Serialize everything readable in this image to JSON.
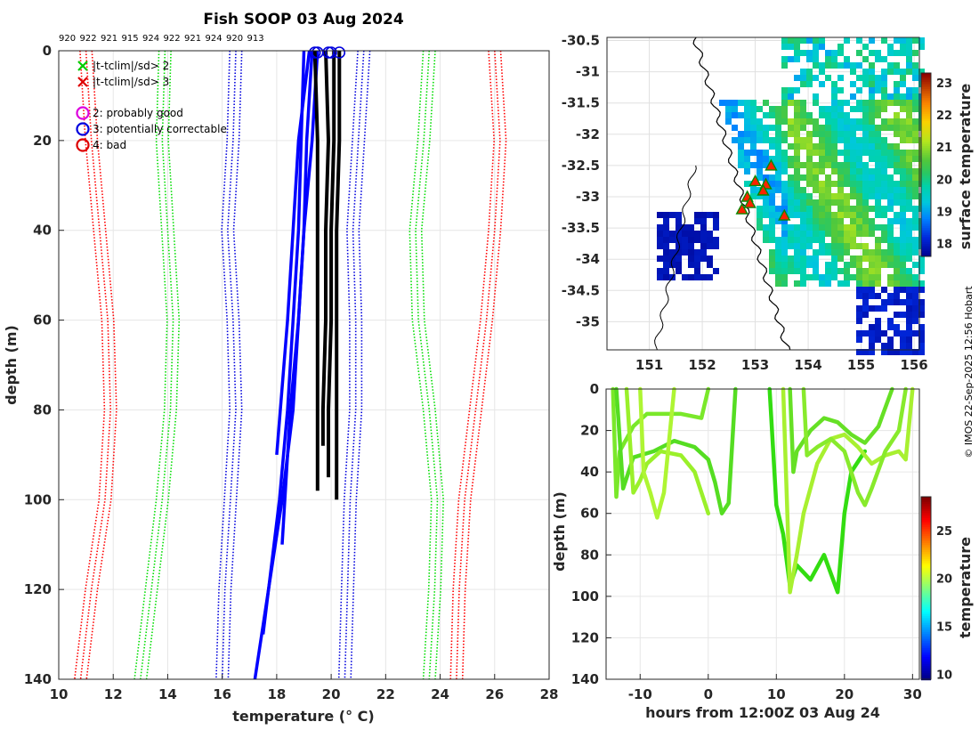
{
  "chart_data": [
    {
      "type": "line",
      "title": "Fish SOOP 03 Aug 2024",
      "xlabel": "temperature (° C)",
      "ylabel": "depth (m)",
      "xlim": [
        10,
        28
      ],
      "ylim": [
        140,
        0
      ],
      "xticks": [
        "10",
        "12",
        "14",
        "16",
        "18",
        "20",
        "22",
        "24",
        "26",
        "28"
      ],
      "yticks": [
        "0",
        "20",
        "40",
        "60",
        "80",
        "100",
        "120",
        "140"
      ],
      "top_labels": [
        "920",
        "922",
        "921",
        "915",
        "924",
        "922",
        "921",
        "924",
        "920",
        "913"
      ],
      "legend": [
        {
          "marker": "x",
          "color": "#00cc00",
          "label": "|t-tclim|/sd> 2"
        },
        {
          "marker": "x",
          "color": "#dd0000",
          "label": "|t-tclim|/sd> 3"
        },
        {
          "marker": "o",
          "color": "#dd00dd",
          "label": "2: probably good"
        },
        {
          "marker": "o",
          "color": "#0000dd",
          "label": "3: potentially correctable"
        },
        {
          "marker": "o",
          "color": "#dd0000",
          "label": "4: bad"
        }
      ],
      "climatology_bands": [
        {
          "color": "#ff0000",
          "name": "-3sd",
          "x": [
            11.0,
            11.2,
            11.5,
            11.8,
            11.9,
            11.7,
            11.2,
            10.8
          ],
          "depth": [
            0,
            20,
            40,
            60,
            80,
            100,
            120,
            140
          ]
        },
        {
          "color": "#00dd00",
          "name": "-2sd",
          "x": [
            13.9,
            13.8,
            14.0,
            14.2,
            14.1,
            13.8,
            13.4,
            13.0
          ],
          "depth": [
            0,
            20,
            40,
            60,
            80,
            100,
            120,
            140
          ]
        },
        {
          "color": "#0000dd",
          "name": "-1sd",
          "x": [
            16.5,
            16.4,
            16.2,
            16.4,
            16.5,
            16.3,
            16.1,
            16.0
          ],
          "depth": [
            0,
            20,
            40,
            60,
            80,
            100,
            120,
            140
          ]
        },
        {
          "color": "#0000dd",
          "name": "+1sd",
          "x": [
            21.2,
            21.0,
            20.8,
            20.9,
            20.9,
            20.7,
            20.6,
            20.5
          ],
          "depth": [
            0,
            20,
            40,
            60,
            80,
            100,
            120,
            140
          ]
        },
        {
          "color": "#00dd00",
          "name": "+2sd",
          "x": [
            23.6,
            23.4,
            23.1,
            23.2,
            23.6,
            23.9,
            23.8,
            23.6
          ],
          "depth": [
            0,
            20,
            40,
            60,
            80,
            100,
            120,
            140
          ]
        },
        {
          "color": "#ff0000",
          "name": "+3sd",
          "x": [
            26.0,
            26.2,
            26.0,
            25.7,
            25.3,
            24.9,
            24.7,
            24.6
          ],
          "depth": [
            0,
            20,
            40,
            60,
            80,
            100,
            120,
            140
          ]
        }
      ],
      "profiles_good": [
        {
          "x": [
            19.4,
            19.5,
            19.5,
            19.5,
            19.5,
            19.5
          ],
          "depth": [
            0,
            20,
            40,
            60,
            80,
            98
          ]
        },
        {
          "x": [
            19.8,
            19.9,
            19.8,
            19.8,
            19.7,
            19.7
          ],
          "depth": [
            0,
            20,
            40,
            60,
            80,
            88
          ]
        },
        {
          "x": [
            20.1,
            20.1,
            20.0,
            20.0,
            19.9,
            19.9
          ],
          "depth": [
            0,
            20,
            40,
            60,
            80,
            95
          ]
        },
        {
          "x": [
            20.3,
            20.3,
            20.2,
            20.2,
            20.2,
            20.2
          ],
          "depth": [
            0,
            20,
            40,
            60,
            80,
            100
          ]
        }
      ],
      "profiles_flagged": [
        {
          "x": [
            19.3,
            19.1,
            19.0,
            18.8,
            18.6,
            18.2,
            17.2
          ],
          "depth": [
            0,
            20,
            40,
            60,
            80,
            100,
            140
          ]
        },
        {
          "x": [
            19.0,
            18.9,
            18.8,
            18.6,
            18.4,
            18.1,
            17.5
          ],
          "depth": [
            0,
            20,
            40,
            60,
            80,
            100,
            130
          ]
        },
        {
          "x": [
            19.5,
            19.3,
            19.0,
            18.8,
            18.5,
            18.2
          ],
          "depth": [
            0,
            20,
            40,
            60,
            80,
            110
          ]
        },
        {
          "x": [
            19.2,
            18.8,
            18.6,
            18.4,
            18.0
          ],
          "depth": [
            0,
            20,
            40,
            60,
            90
          ]
        }
      ],
      "surface_markers_x": [
        19.4,
        19.5,
        19.9,
        20.0,
        20.3
      ]
    },
    {
      "type": "heatmap",
      "name": "sst-map",
      "xticks": [
        "151",
        "152",
        "153",
        "154",
        "155",
        "156"
      ],
      "yticks": [
        "-30.5",
        "-31",
        "-31.5",
        "-32",
        "-32.5",
        "-33",
        "-33.5",
        "-34",
        "-34.5",
        "-35"
      ],
      "xlim": [
        150.2,
        156.1
      ],
      "ylim": [
        -35.45,
        -30.45
      ],
      "colorbar": {
        "label": "surface temperature",
        "ticks": [
          "18",
          "19",
          "20",
          "21",
          "22",
          "23"
        ],
        "range": [
          17.6,
          23.3
        ]
      },
      "stations": [
        {
          "lon": 153.3,
          "lat": -32.5
        },
        {
          "lon": 153.0,
          "lat": -32.75
        },
        {
          "lon": 153.2,
          "lat": -32.8
        },
        {
          "lon": 153.15,
          "lat": -32.9
        },
        {
          "lon": 152.85,
          "lat": -33.0
        },
        {
          "lon": 152.9,
          "lat": -33.1
        },
        {
          "lon": 152.75,
          "lat": -33.2
        },
        {
          "lon": 153.55,
          "lat": -33.3
        }
      ]
    },
    {
      "type": "scatter",
      "name": "time-depth",
      "xlabel": "hours from 12:00Z 03 Aug 24",
      "ylabel": "depth (m)",
      "xlim": [
        -15,
        31
      ],
      "ylim": [
        140,
        0
      ],
      "xticks": [
        "-10",
        "0",
        "10",
        "20",
        "30"
      ],
      "yticks": [
        "0",
        "20",
        "40",
        "60",
        "80",
        "100",
        "120",
        "140"
      ],
      "colorbar": {
        "label": "temperature",
        "ticks": [
          "10",
          "15",
          "20",
          "25"
        ],
        "range": [
          9.5,
          28.5
        ]
      },
      "tows": [
        {
          "color": "#7ae82a",
          "points": [
            [
              -14,
              0
            ],
            [
              -13.5,
              52
            ],
            [
              -13,
              30
            ],
            [
              -11,
              18
            ],
            [
              -9,
              12
            ],
            [
              -4,
              12
            ],
            [
              -1,
              14
            ],
            [
              0,
              0
            ]
          ]
        },
        {
          "color": "#55dd22",
          "points": [
            [
              -13.5,
              0
            ],
            [
              -12.5,
              48
            ],
            [
              -11,
              33
            ],
            [
              -8,
              30
            ],
            [
              -5,
              25
            ],
            [
              -2,
              28
            ],
            [
              0,
              34
            ],
            [
              1,
              45
            ],
            [
              2,
              60
            ],
            [
              3,
              55
            ],
            [
              4,
              0
            ]
          ]
        },
        {
          "color": "#9af02a",
          "points": [
            [
              -12,
              0
            ],
            [
              -11,
              50
            ],
            [
              -10,
              44
            ],
            [
              -9,
              36
            ],
            [
              -7,
              30
            ],
            [
              -4,
              32
            ],
            [
              -2,
              40
            ],
            [
              -0.5,
              55
            ],
            [
              0,
              60
            ]
          ]
        },
        {
          "color": "#aef533",
          "points": [
            [
              -10,
              0
            ],
            [
              -9.5,
              40
            ],
            [
              -8.5,
              50
            ],
            [
              -7.5,
              62
            ],
            [
              -6.5,
              50
            ],
            [
              -5,
              0
            ]
          ]
        },
        {
          "color": "#33dd11",
          "points": [
            [
              9,
              0
            ],
            [
              10,
              56
            ],
            [
              11,
              70
            ],
            [
              12,
              95
            ],
            [
              13,
              85
            ],
            [
              15,
              92
            ],
            [
              17,
              80
            ],
            [
              19,
              98
            ],
            [
              20,
              60
            ],
            [
              21,
              40
            ],
            [
              23,
              30
            ]
          ]
        },
        {
          "color": "#a8f030",
          "points": [
            [
              11,
              0
            ],
            [
              12,
              98
            ],
            [
              13,
              80
            ],
            [
              14,
              60
            ],
            [
              16,
              36
            ],
            [
              18,
              24
            ],
            [
              20,
              22
            ],
            [
              22,
              28
            ],
            [
              24,
              36
            ],
            [
              26,
              32
            ],
            [
              28,
              30
            ],
            [
              29,
              34
            ],
            [
              30,
              0
            ]
          ]
        },
        {
          "color": "#66e025",
          "points": [
            [
              12,
              0
            ],
            [
              12.5,
              40
            ],
            [
              13,
              30
            ],
            [
              15,
              20
            ],
            [
              17,
              14
            ],
            [
              19,
              16
            ],
            [
              21,
              22
            ],
            [
              23,
              26
            ],
            [
              25,
              18
            ],
            [
              27,
              0
            ]
          ]
        },
        {
          "color": "#88ea2c",
          "points": [
            [
              14,
              0
            ],
            [
              14.5,
              32
            ],
            [
              16,
              28
            ],
            [
              18,
              24
            ],
            [
              20,
              30
            ],
            [
              22,
              50
            ],
            [
              23,
              56
            ],
            [
              24,
              48
            ],
            [
              26,
              30
            ],
            [
              28,
              20
            ],
            [
              29,
              0
            ]
          ]
        }
      ]
    }
  ],
  "credit": "© IMOS 22-Sep-2025 12:56 Hobart"
}
